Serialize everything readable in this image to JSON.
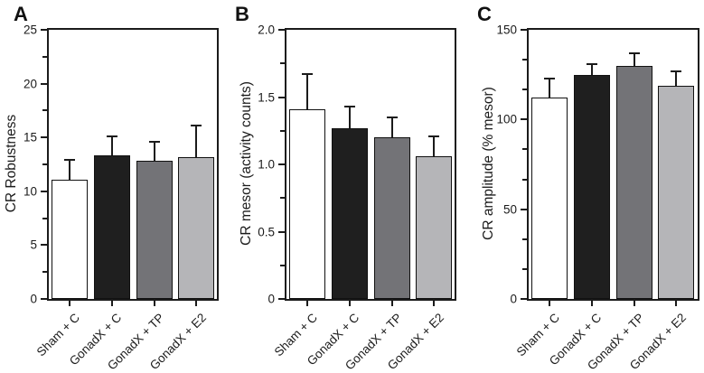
{
  "chart_data": [
    {
      "type": "bar",
      "panel_label": "A",
      "title": "",
      "xlabel": "",
      "ylabel": "CR Robustness",
      "ylim": [
        0,
        25
      ],
      "yticks": [
        0,
        5,
        10,
        15,
        20,
        25
      ],
      "ytick_labels": [
        "0",
        "5",
        "10",
        "15",
        "20",
        "25"
      ],
      "yticks_minor": [
        2.5,
        7.5,
        12.5,
        17.5,
        22.5
      ],
      "categories": [
        "Sham + C",
        "GonadX + C",
        "GonadX + TP",
        "GonadX + E2"
      ],
      "values": [
        11.1,
        13.3,
        12.8,
        13.2
      ],
      "errors": [
        1.8,
        1.8,
        1.8,
        2.9
      ],
      "bar_colors": [
        "#ffffff",
        "#1f1f1f",
        "#737377",
        "#b5b5b8"
      ],
      "grid": false,
      "legend": "none"
    },
    {
      "type": "bar",
      "panel_label": "B",
      "title": "",
      "xlabel": "",
      "ylabel": "CR mesor (activity counts)",
      "ylim": [
        0,
        2.0
      ],
      "yticks": [
        0,
        0.5,
        1.0,
        1.5,
        2.0
      ],
      "ytick_labels": [
        "0",
        "0.5",
        "1.0",
        "1.5",
        "2.0"
      ],
      "yticks_minor": [
        0.25,
        0.75,
        1.25,
        1.75
      ],
      "categories": [
        "Sham + C",
        "GonadX + C",
        "GonadX + TP",
        "GonadX + E2"
      ],
      "values": [
        1.41,
        1.27,
        1.2,
        1.06
      ],
      "errors": [
        0.26,
        0.16,
        0.15,
        0.15
      ],
      "bar_colors": [
        "#ffffff",
        "#1f1f1f",
        "#737377",
        "#b5b5b8"
      ],
      "grid": false,
      "legend": "none"
    },
    {
      "type": "bar",
      "panel_label": "C",
      "title": "",
      "xlabel": "",
      "ylabel": "CR amplitude (% mesor)",
      "ylim": [
        0,
        150
      ],
      "yticks": [
        0,
        50,
        100,
        150
      ],
      "ytick_labels": [
        "0",
        "50",
        "100",
        "150"
      ],
      "yticks_minor": [
        16.67,
        33.33,
        66.67,
        83.33,
        116.67,
        133.33
      ],
      "categories": [
        "Sham + C",
        "GonadX + C",
        "GonadX + TP",
        "GonadX + E2"
      ],
      "values": [
        112,
        125,
        130,
        119
      ],
      "errors": [
        11,
        6,
        7,
        8
      ],
      "bar_colors": [
        "#ffffff",
        "#1f1f1f",
        "#737377",
        "#b5b5b8"
      ],
      "grid": false,
      "legend": "none"
    }
  ]
}
